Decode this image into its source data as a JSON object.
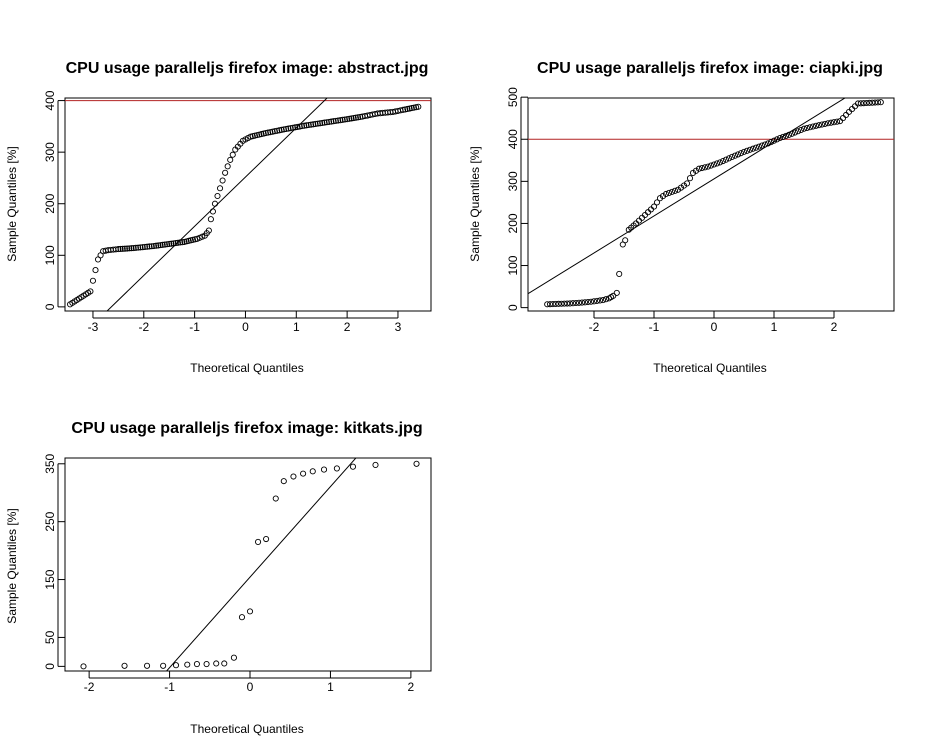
{
  "chart_data": [
    {
      "type": "scatter",
      "title": "CPU usage paralleljs firefox image:  abstract.jpg",
      "xlabel": "Theoretical Quantiles",
      "ylabel": "Sample Quantiles [%]",
      "xlim": [
        -3.55,
        3.65
      ],
      "ylim": [
        -8,
        405
      ],
      "xticks": [
        -3,
        -2,
        -1,
        0,
        1,
        2,
        3
      ],
      "xtick_labels": [
        "-3",
        "-2",
        "-1",
        "0",
        "1",
        "2",
        "3"
      ],
      "yticks": [
        0,
        100,
        200,
        300,
        400
      ],
      "ytick_labels": [
        "0",
        "100",
        "200",
        "300",
        "400"
      ],
      "reference_line": {
        "y": 400,
        "color": "#b22222"
      },
      "qq_line": {
        "x1": -3.55,
        "y1": -87,
        "x2": 3.65,
        "y2": 600
      },
      "points_curve": [
        [
          -3.45,
          5
        ],
        [
          -3.05,
          30
        ],
        [
          -2.9,
          92
        ],
        [
          -2.8,
          108
        ],
        [
          -2.7,
          110
        ],
        [
          -2.6,
          111
        ],
        [
          -2.5,
          112
        ],
        [
          -2.2,
          114
        ],
        [
          -1.8,
          118
        ],
        [
          -1.5,
          122
        ],
        [
          -1.2,
          126
        ],
        [
          -0.95,
          132
        ],
        [
          -0.8,
          138
        ],
        [
          -0.72,
          148
        ],
        [
          -0.68,
          170
        ],
        [
          -0.6,
          200
        ],
        [
          -0.5,
          230
        ],
        [
          -0.4,
          260
        ],
        [
          -0.3,
          285
        ],
        [
          -0.2,
          305
        ],
        [
          -0.05,
          322
        ],
        [
          0.1,
          330
        ],
        [
          0.4,
          337
        ],
        [
          0.8,
          345
        ],
        [
          1.2,
          352
        ],
        [
          1.6,
          358
        ],
        [
          2.0,
          364
        ],
        [
          2.3,
          369
        ],
        [
          2.5,
          373
        ],
        [
          2.6,
          375
        ],
        [
          2.7,
          376
        ],
        [
          2.8,
          377
        ],
        [
          2.9,
          378
        ],
        [
          3.1,
          382
        ],
        [
          3.4,
          388
        ]
      ]
    },
    {
      "type": "scatter",
      "title": "CPU usage paralleljs firefox image:  ciapki.jpg",
      "xlabel": "Theoretical Quantiles",
      "ylabel": "Sample Quantiles [%]",
      "xlim": [
        -3.1,
        3.0
      ],
      "ylim": [
        -8,
        498
      ],
      "xticks": [
        -2,
        -1,
        0,
        1,
        2
      ],
      "xtick_labels": [
        "-2",
        "-1",
        "0",
        "1",
        "2"
      ],
      "yticks": [
        0,
        100,
        200,
        300,
        400,
        500
      ],
      "ytick_labels": [
        "0",
        "100",
        "200",
        "300",
        "400",
        "500"
      ],
      "reference_line": {
        "y": 400,
        "color": "#b22222"
      },
      "qq_line": {
        "x1": -3.1,
        "y1": 33,
        "x2": 3.0,
        "y2": 570
      },
      "points_curve": [
        [
          -2.78,
          8
        ],
        [
          -2.4,
          10
        ],
        [
          -2.2,
          12
        ],
        [
          -2.05,
          14
        ],
        [
          -1.95,
          16
        ],
        [
          -1.85,
          18
        ],
        [
          -1.75,
          22
        ],
        [
          -1.68,
          28
        ],
        [
          -1.62,
          35
        ],
        [
          -1.58,
          80
        ],
        [
          -1.52,
          150
        ],
        [
          -1.48,
          160
        ],
        [
          -1.42,
          185
        ],
        [
          -1.3,
          200
        ],
        [
          -1.15,
          220
        ],
        [
          -1.0,
          240
        ],
        [
          -0.9,
          260
        ],
        [
          -0.8,
          270
        ],
        [
          -0.6,
          280
        ],
        [
          -0.45,
          295
        ],
        [
          -0.35,
          320
        ],
        [
          -0.25,
          330
        ],
        [
          -0.1,
          335
        ],
        [
          0.1,
          345
        ],
        [
          0.3,
          358
        ],
        [
          0.5,
          370
        ],
        [
          0.7,
          380
        ],
        [
          0.9,
          390
        ],
        [
          1.1,
          403
        ],
        [
          1.3,
          413
        ],
        [
          1.5,
          425
        ],
        [
          1.7,
          432
        ],
        [
          1.9,
          438
        ],
        [
          2.1,
          443
        ],
        [
          2.25,
          465
        ],
        [
          2.4,
          485
        ],
        [
          2.78,
          488
        ]
      ]
    },
    {
      "type": "scatter",
      "title": "CPU usage paralleljs firefox image:  kitkats.jpg",
      "xlabel": "Theoretical Quantiles",
      "ylabel": "Sample Quantiles [%]",
      "xlim": [
        -2.3,
        2.25
      ],
      "ylim": [
        -8,
        360
      ],
      "xticks": [
        -2,
        -1,
        0,
        1,
        2
      ],
      "xtick_labels": [
        "-2",
        "-1",
        "0",
        "1",
        "2"
      ],
      "yticks": [
        0,
        50,
        150,
        250,
        350
      ],
      "ytick_labels": [
        "0",
        "50",
        "150",
        "250",
        "350"
      ],
      "qq_line": {
        "x1": -1.05,
        "y1": -10,
        "x2": 1.38,
        "y2": 370
      },
      "points": [
        [
          -2.07,
          0
        ],
        [
          -1.56,
          1
        ],
        [
          -1.28,
          1
        ],
        [
          -1.08,
          1
        ],
        [
          -0.92,
          2
        ],
        [
          -0.78,
          3
        ],
        [
          -0.66,
          4
        ],
        [
          -0.54,
          4
        ],
        [
          -0.42,
          5
        ],
        [
          -0.32,
          5
        ],
        [
          -0.2,
          15
        ],
        [
          -0.1,
          85
        ],
        [
          0.0,
          95
        ],
        [
          0.1,
          215
        ],
        [
          0.2,
          220
        ],
        [
          0.32,
          290
        ],
        [
          0.42,
          320
        ],
        [
          0.54,
          328
        ],
        [
          0.66,
          333
        ],
        [
          0.78,
          337
        ],
        [
          0.92,
          340
        ],
        [
          1.08,
          342
        ],
        [
          1.28,
          345
        ],
        [
          1.56,
          348
        ],
        [
          2.07,
          350
        ]
      ]
    }
  ]
}
